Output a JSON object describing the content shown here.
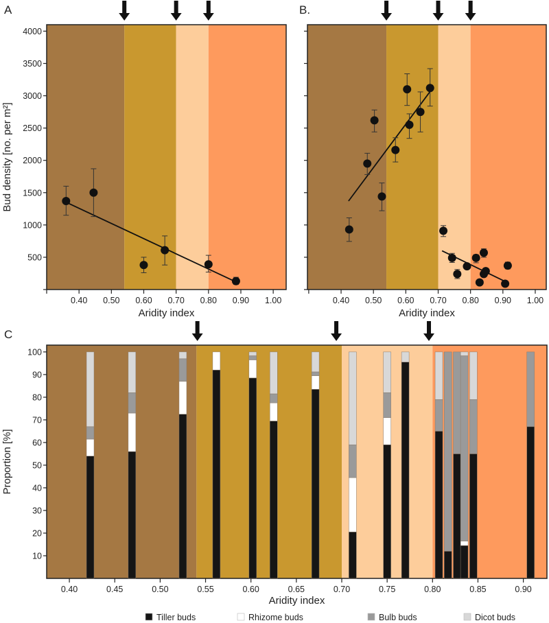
{
  "colors": {
    "zone_1": "#a57843",
    "zone_2": "#c9982f",
    "zone_3": "#fdcd9b",
    "zone_4": "#fe9a5d",
    "tiller": "#151515",
    "rhizome": "#ffffff",
    "bulb": "#9a9a9a",
    "dicot": "#d8d8d8",
    "points": "#111111"
  },
  "chart_data": [
    {
      "panel_label": "A",
      "type": "scatter",
      "xlabel": "Aridity index",
      "ylabel": "Bud density [no. per m²]",
      "xlim": [
        0.3,
        1.04
      ],
      "ylim": [
        0,
        4100
      ],
      "xticks": [
        0.3,
        0.4,
        0.5,
        0.6,
        0.7,
        0.8,
        0.9,
        1.0
      ],
      "xtick_labels": [
        "",
        "0.40",
        "0.50",
        "0.60",
        "0.70",
        "0.80",
        "0.90",
        "1.00"
      ],
      "yticks": [
        0,
        500,
        1000,
        1500,
        2000,
        2500,
        3000,
        3500,
        4000
      ],
      "ytick_labels": [
        "",
        "500",
        "1000",
        "1500",
        "2000",
        "2500",
        "3000",
        "3500",
        "4000"
      ],
      "zone_bounds": [
        0.54,
        0.7,
        0.8
      ],
      "arrows_at": [
        0.54,
        0.7,
        0.8
      ],
      "points": [
        {
          "x": 0.36,
          "y": 1370,
          "lo": 1150,
          "hi": 1600
        },
        {
          "x": 0.445,
          "y": 1500,
          "lo": 1130,
          "hi": 1870
        },
        {
          "x": 0.6,
          "y": 380,
          "lo": 260,
          "hi": 500
        },
        {
          "x": 0.665,
          "y": 610,
          "lo": 380,
          "hi": 830
        },
        {
          "x": 0.8,
          "y": 390,
          "lo": 270,
          "hi": 530
        },
        {
          "x": 0.885,
          "y": 130,
          "lo": 80,
          "hi": 190
        }
      ],
      "fit_lines": [
        {
          "x": [
            0.365,
            0.88
          ],
          "y": [
            1340,
            130
          ]
        }
      ]
    },
    {
      "panel_label": "B.",
      "type": "scatter",
      "xlabel": "Aridity index",
      "xlim": [
        0.296,
        1.034
      ],
      "ylim": [
        0,
        4100
      ],
      "xticks": [
        0.3,
        0.4,
        0.5,
        0.6,
        0.7,
        0.8,
        0.9,
        1.0
      ],
      "xtick_labels": [
        "",
        "0.40",
        "0.50",
        "0.60",
        "0.70",
        "0.80",
        "0.90",
        "1.00"
      ],
      "yticks": [
        0,
        500,
        1000,
        1500,
        2000,
        2500,
        3000,
        3500,
        4000
      ],
      "zone_bounds": [
        0.54,
        0.7,
        0.8
      ],
      "arrows_at": [
        0.54,
        0.7,
        0.8
      ],
      "points": [
        {
          "x": 0.425,
          "y": 930,
          "lo": 745,
          "hi": 1110
        },
        {
          "x": 0.481,
          "y": 1950,
          "lo": 1780,
          "hi": 2110
        },
        {
          "x": 0.503,
          "y": 2620,
          "lo": 2440,
          "hi": 2780
        },
        {
          "x": 0.526,
          "y": 1440,
          "lo": 1220,
          "hi": 1650
        },
        {
          "x": 0.568,
          "y": 2160,
          "lo": 1975,
          "hi": 2350
        },
        {
          "x": 0.604,
          "y": 3100,
          "lo": 2850,
          "hi": 3340
        },
        {
          "x": 0.611,
          "y": 2550,
          "lo": 2340,
          "hi": 2720
        },
        {
          "x": 0.645,
          "y": 2750,
          "lo": 2440,
          "hi": 3060
        },
        {
          "x": 0.675,
          "y": 3120,
          "lo": 2840,
          "hi": 3420
        },
        {
          "x": 0.716,
          "y": 910,
          "lo": 820,
          "hi": 990
        },
        {
          "x": 0.743,
          "y": 490,
          "lo": 420,
          "hi": 560
        },
        {
          "x": 0.759,
          "y": 240,
          "lo": 170,
          "hi": 310
        },
        {
          "x": 0.789,
          "y": 360,
          "lo": 330,
          "hi": 390
        },
        {
          "x": 0.817,
          "y": 490,
          "lo": 415,
          "hi": 540
        },
        {
          "x": 0.828,
          "y": 110,
          "lo": 80,
          "hi": 140
        },
        {
          "x": 0.841,
          "y": 570,
          "lo": 500,
          "hi": 630
        },
        {
          "x": 0.841,
          "y": 240,
          "lo": 200,
          "hi": 280
        },
        {
          "x": 0.847,
          "y": 285,
          "lo": 240,
          "hi": 325
        },
        {
          "x": 0.907,
          "y": 90,
          "lo": 60,
          "hi": 120
        },
        {
          "x": 0.915,
          "y": 370,
          "lo": 320,
          "hi": 425
        }
      ],
      "fit_lines": [
        {
          "x": [
            0.423,
            0.675
          ],
          "y": [
            1370,
            3065
          ]
        },
        {
          "x": [
            0.712,
            0.905
          ],
          "y": [
            600,
            130
          ]
        }
      ]
    },
    {
      "panel_label": "C",
      "type": "bar",
      "stacked": true,
      "xlabel": "Aridity index",
      "ylabel": "Proportion [%]",
      "xlim": [
        0.375,
        0.926
      ],
      "ylim": [
        0,
        103
      ],
      "xticks": [
        0.4,
        0.45,
        0.5,
        0.55,
        0.6,
        0.65,
        0.7,
        0.75,
        0.8,
        0.85,
        0.9
      ],
      "xtick_labels": [
        "0.40",
        "0.45",
        "0.50",
        "0.55",
        "0.60",
        "0.65",
        "0.70",
        "0.75",
        "0.80",
        "0.85",
        "0.90"
      ],
      "yticks": [
        10,
        20,
        30,
        40,
        50,
        60,
        70,
        80,
        90,
        100
      ],
      "ytick_labels": [
        "10",
        "20",
        "30",
        "40",
        "50",
        "60",
        "70",
        "80",
        "90",
        "100"
      ],
      "zone_bounds": [
        0.54,
        0.7,
        0.8
      ],
      "arrows_at": [
        0.541,
        0.694,
        0.796
      ],
      "legend_position": "bottom",
      "x": [
        0.423,
        0.469,
        0.525,
        0.562,
        0.602,
        0.625,
        0.671,
        0.712,
        0.75,
        0.77,
        0.807,
        0.817,
        0.827,
        0.835,
        0.845,
        0.908
      ],
      "series": [
        {
          "name": "Tiller buds",
          "values": [
            54,
            56,
            72.5,
            92,
            88.5,
            69.5,
            83.5,
            20.5,
            59,
            95.5,
            65,
            12,
            55,
            14.5,
            55,
            67
          ]
        },
        {
          "name": "Rhizome buds",
          "values": [
            7.5,
            17,
            14.5,
            8,
            8,
            8,
            6,
            24,
            12,
            0,
            0,
            0,
            0,
            2,
            0,
            0
          ]
        },
        {
          "name": "Bulb buds",
          "values": [
            5.5,
            9,
            10,
            0,
            1.8,
            4,
            1.7,
            14.5,
            11,
            0,
            14,
            88,
            45,
            81.8,
            24,
            33
          ]
        },
        {
          "name": "Dicot buds",
          "values": [
            33,
            18,
            3,
            0,
            1.7,
            18.5,
            8.8,
            41,
            18,
            4.5,
            21,
            0,
            0,
            1.7,
            21,
            0
          ]
        }
      ]
    }
  ]
}
